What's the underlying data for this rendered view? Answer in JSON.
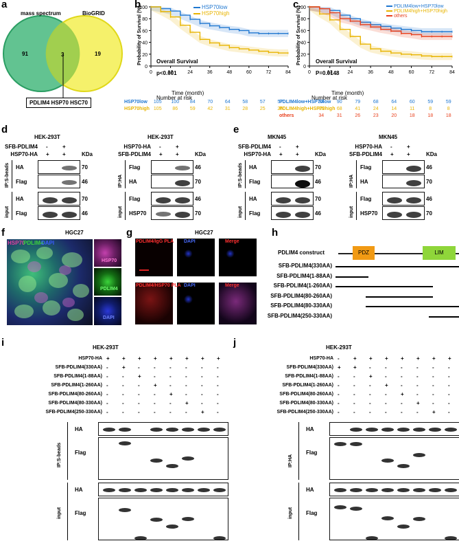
{
  "panels": {
    "a": {
      "label": "a",
      "left_set": "mass spectrum",
      "right_set": "BioGRID",
      "left_count": "91",
      "overlap_count": "3",
      "right_count": "19",
      "overlap_genes": "PDLIM4 HSP70 HSC70"
    },
    "b": {
      "label": "b",
      "ylabel": "Probability of Survival (%)",
      "xlabel": "Time (month)",
      "legend": [
        "HSP70low",
        "HSP70high"
      ],
      "subtitle": "Overall Survival",
      "pvalue": "p<0.001",
      "risk_title": "Number at risk",
      "risk_rows": [
        {
          "name": "HSP70low",
          "values": [
            "105",
            "100",
            "84",
            "70",
            "64",
            "58",
            "57",
            "57"
          ]
        },
        {
          "name": "HSP70high",
          "values": [
            "105",
            "86",
            "59",
            "42",
            "31",
            "28",
            "25",
            "25"
          ]
        }
      ]
    },
    "c": {
      "label": "c",
      "ylabel": "Probability of Survival (%)",
      "xlabel": "Time (month)",
      "legend": [
        "PDLIM4low+HSP70low",
        "PDLIM4high+HSP70high",
        "others"
      ],
      "subtitle": "Overall Survival",
      "pvalue": "P=0.0148",
      "risk_title": "Number at risk",
      "risk_rows": [
        {
          "name": "PDLIM4low+HSP70low",
          "values": [
            "94",
            "90",
            "79",
            "68",
            "64",
            "60",
            "59",
            "59"
          ]
        },
        {
          "name": "PDLIM4high+HSP70high",
          "values": [
            "85",
            "68",
            "41",
            "24",
            "14",
            "11",
            "8",
            "8"
          ]
        },
        {
          "name": "others",
          "values": [
            "34",
            "31",
            "26",
            "23",
            "20",
            "18",
            "18",
            "18"
          ]
        }
      ]
    },
    "d": {
      "label": "d",
      "cell": "HEK-293T",
      "left": {
        "rows": [
          "SFB-PDLIM4",
          "HSP70-HA"
        ],
        "signs": [
          [
            "-",
            "+"
          ],
          [
            "+",
            "+"
          ]
        ],
        "ip": "IP:S-beads",
        "inp": "input",
        "blots": [
          "HA",
          "Flag",
          "HA",
          "Flag"
        ],
        "kda": [
          "70",
          "46",
          "70",
          "46"
        ]
      },
      "right": {
        "rows": [
          "HSP70-HA",
          "SFB-PDLIM4"
        ],
        "signs": [
          [
            "-",
            "+"
          ],
          [
            "+",
            "+"
          ]
        ],
        "ip": "IP:HA",
        "inp": "input",
        "blots": [
          "Flag",
          "HA",
          "Flag",
          "HSP70"
        ],
        "kda": [
          "46",
          "70",
          "46",
          "70"
        ]
      },
      "kda_title": "KDa"
    },
    "e": {
      "label": "e",
      "cell": "MKN45",
      "left": {
        "rows": [
          "SFB-PDLIM4",
          "HSP70-HA"
        ],
        "signs": [
          [
            "-",
            "+"
          ],
          [
            "+",
            "+"
          ]
        ],
        "ip": "IP:S-beads",
        "inp": "input",
        "blots": [
          "HA",
          "Flag",
          "HA",
          "Flag"
        ],
        "kda": [
          "70",
          "46",
          "70",
          "46"
        ]
      },
      "right": {
        "rows": [
          "HSP70-HA",
          "SFB-PDLIM4"
        ],
        "signs": [
          [
            "-",
            "+"
          ],
          [
            "+",
            "+"
          ]
        ],
        "ip": "IP:HA",
        "inp": "input",
        "blots": [
          "Flag",
          "HA",
          "Flag",
          "HSP70"
        ],
        "kda": [
          "46",
          "70",
          "46",
          "70"
        ]
      },
      "kda_title": "KDa"
    },
    "f": {
      "label": "f",
      "cell": "HGC27",
      "channels": [
        "HSP70",
        "PDLIM4",
        "DAPI"
      ]
    },
    "g": {
      "label": "g",
      "cell": "HGC27",
      "row1": [
        "PDLIM4/IgG PLA",
        "DAPI",
        "Merge"
      ],
      "row2": [
        "PDLIM4/HSP70 PLA",
        "DAPI",
        "Merge"
      ]
    },
    "h": {
      "label": "h",
      "construct": "PDLIM4 construct",
      "domains": [
        "PDZ",
        "LIM"
      ],
      "constructs": [
        "SFB-PDLIM4(330AA)",
        "SFB-PDLIM4(1-88AA)",
        "SFB-PDLIM4(1-260AA)",
        "SFB-PDLIM4(80-260AA)",
        "SFB-PDLIM4(80-330AA)",
        "SFB-PDLIM4(250-330AA)"
      ]
    },
    "i": {
      "label": "i",
      "cell": "HEK-293T",
      "rows": [
        "HSP70-HA",
        "SFB-PDLIM4(330AA)",
        "SFB-PDLIM4(1-88AA)",
        "SFB-PDLIM4(1-260AA)",
        "SFB-PDLIM4(80-260AA)",
        "SFB-PDLIM4(80-330AA)",
        "SFB-PDLIM4(250-330AA)"
      ],
      "signs": [
        [
          "+",
          "+",
          "+",
          "+",
          "+",
          "+",
          "+",
          "+"
        ],
        [
          "-",
          "+",
          "-",
          "-",
          "-",
          "-",
          "-",
          "-"
        ],
        [
          "-",
          "-",
          "+",
          "-",
          "-",
          "-",
          "-",
          "-"
        ],
        [
          "-",
          "-",
          "-",
          "+",
          "-",
          "-",
          "-",
          "-"
        ],
        [
          "-",
          "-",
          "-",
          "-",
          "+",
          "-",
          "-",
          "-"
        ],
        [
          "-",
          "-",
          "-",
          "-",
          "-",
          "+",
          "-",
          "-"
        ],
        [
          "-",
          "-",
          "-",
          "-",
          "-",
          "-",
          "+",
          "-"
        ]
      ],
      "ip": "IP:S-beads",
      "inp": "input",
      "blots": [
        "HA",
        "Flag",
        "HA",
        "Flag"
      ]
    },
    "j": {
      "label": "j",
      "cell": "HEK-293T",
      "rows": [
        "HSP70-HA",
        "SFB-PDLIM4(330AA)",
        "SFB-PDLIM4(1-88AA)",
        "SFB-PDLIM4(1-260AA)",
        "SFB-PDLIM4(80-260AA)",
        "SFB-PDLIM4(80-330AA)",
        "SFB-PDLIM4(250-330AA)"
      ],
      "signs": [
        [
          "-",
          "+",
          "+",
          "+",
          "+",
          "+",
          "+",
          "+"
        ],
        [
          "+",
          "+",
          "-",
          "-",
          "-",
          "-",
          "-",
          "-"
        ],
        [
          "-",
          "-",
          "+",
          "-",
          "-",
          "-",
          "-",
          "-"
        ],
        [
          "-",
          "-",
          "-",
          "+",
          "-",
          "-",
          "-",
          "-"
        ],
        [
          "-",
          "-",
          "-",
          "-",
          "+",
          "-",
          "-",
          "-"
        ],
        [
          "-",
          "-",
          "-",
          "-",
          "-",
          "+",
          "-",
          "-"
        ],
        [
          "-",
          "-",
          "-",
          "-",
          "-",
          "-",
          "+",
          "-"
        ]
      ],
      "ip": "IP:HA",
      "inp": "input",
      "blots": [
        "HA",
        "Flag",
        "HA",
        "Flag"
      ]
    }
  },
  "chart_data": [
    {
      "type": "line",
      "xlabel": "Time (month)",
      "ylabel": "Probability of Survival (%)",
      "xlim": [
        0,
        84
      ],
      "ylim": [
        0,
        100
      ],
      "xticks": [
        0,
        12,
        24,
        36,
        48,
        60,
        72,
        84
      ],
      "yticks": [
        0,
        20,
        40,
        60,
        80,
        100
      ],
      "series": [
        {
          "name": "HSP70low",
          "color": "#1f77d0",
          "x": [
            0,
            6,
            12,
            18,
            24,
            30,
            36,
            42,
            48,
            54,
            60,
            66,
            72,
            78,
            84
          ],
          "y": [
            100,
            97,
            93,
            86,
            79,
            72,
            68,
            65,
            62,
            60,
            56,
            55,
            55,
            55,
            55
          ]
        },
        {
          "name": "HSP70high",
          "color": "#e8b400",
          "x": [
            0,
            6,
            12,
            18,
            24,
            30,
            36,
            42,
            48,
            54,
            60,
            66,
            72,
            78,
            84
          ],
          "y": [
            100,
            92,
            83,
            69,
            57,
            45,
            39,
            35,
            31,
            29,
            27,
            25,
            23,
            22,
            22
          ]
        }
      ]
    },
    {
      "type": "line",
      "xlabel": "Time (month)",
      "ylabel": "Probability of Survival (%)",
      "xlim": [
        0,
        84
      ],
      "ylim": [
        0,
        100
      ],
      "xticks": [
        0,
        12,
        24,
        36,
        48,
        60,
        72,
        84
      ],
      "yticks": [
        0,
        20,
        40,
        60,
        80,
        100
      ],
      "series": [
        {
          "name": "PDLIM4low+HSP70low",
          "color": "#1f77d0",
          "x": [
            0,
            6,
            12,
            18,
            24,
            30,
            36,
            42,
            48,
            54,
            60,
            66,
            72,
            78,
            84
          ],
          "y": [
            100,
            97,
            94,
            86,
            80,
            74,
            70,
            67,
            64,
            62,
            60,
            58,
            58,
            58,
            58
          ]
        },
        {
          "name": "PDLIM4high+HSP70high",
          "color": "#e8b400",
          "x": [
            0,
            6,
            12,
            18,
            24,
            30,
            36,
            42,
            48,
            54,
            60,
            66,
            72,
            78,
            84
          ],
          "y": [
            100,
            88,
            78,
            62,
            50,
            37,
            29,
            25,
            22,
            20,
            19,
            17,
            16,
            16,
            16
          ]
        },
        {
          "name": "others",
          "color": "#e8401c",
          "x": [
            0,
            6,
            12,
            18,
            24,
            30,
            36,
            42,
            48,
            54,
            60,
            66,
            72,
            78,
            84
          ],
          "y": [
            100,
            97,
            90,
            80,
            76,
            70,
            66,
            62,
            59,
            55,
            53,
            50,
            50,
            50,
            50
          ]
        }
      ]
    }
  ]
}
